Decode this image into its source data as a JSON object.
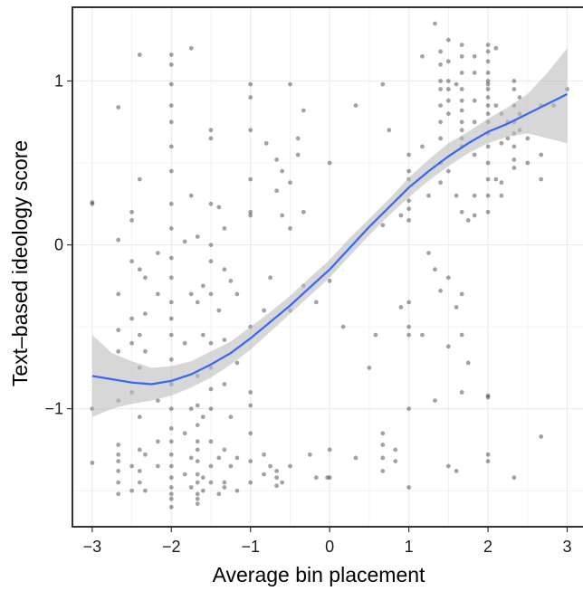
{
  "chart_data": {
    "type": "scatter",
    "title": "",
    "xlabel": "Average bin placement",
    "ylabel": "Text–based ideology score",
    "xlim": [
      -3.25,
      3.2
    ],
    "ylim": [
      -1.72,
      1.45
    ],
    "x_ticks": [
      -3,
      -2,
      -1,
      0,
      1,
      2,
      3
    ],
    "x_tick_labels": [
      "−3",
      "−2",
      "−1",
      "0",
      "1",
      "2",
      "3"
    ],
    "y_ticks": [
      -1,
      0,
      1
    ],
    "y_tick_labels": [
      "−1",
      "0",
      "1"
    ],
    "grid": true,
    "colors": {
      "points": "#333333",
      "smooth_line": "#3366ff",
      "confidence_band": "#bdbdbd",
      "grid": "#ebebeb"
    },
    "points": [
      [
        -3,
        0.26
      ],
      [
        -3,
        0.25
      ],
      [
        -3,
        -1.33
      ],
      [
        -3,
        -1.0
      ],
      [
        -2.67,
        0.84
      ],
      [
        -2.67,
        0.03
      ],
      [
        -2.67,
        -0.3
      ],
      [
        -2.67,
        -0.52
      ],
      [
        -2.67,
        -0.95
      ],
      [
        -2.67,
        -1.22
      ],
      [
        -2.67,
        -1.28
      ],
      [
        -2.67,
        -1.32
      ],
      [
        -2.67,
        -1.38
      ],
      [
        -2.67,
        -1.45
      ],
      [
        -2.67,
        -1.52
      ],
      [
        -2.67,
        -0.65
      ],
      [
        -2.5,
        0.2
      ],
      [
        -2.5,
        0.15
      ],
      [
        -2.5,
        -0.1
      ],
      [
        -2.5,
        -0.45
      ],
      [
        -2.5,
        -0.6
      ],
      [
        -2.5,
        -0.9
      ],
      [
        -2.5,
        -1.35
      ],
      [
        -2.5,
        -1.5
      ],
      [
        -2.4,
        1.16
      ],
      [
        -2.4,
        0.4
      ],
      [
        -2.4,
        -0.15
      ],
      [
        -2.4,
        -0.55
      ],
      [
        -2.4,
        -0.75
      ],
      [
        -2.4,
        -1.05
      ],
      [
        -2.4,
        -1.25
      ],
      [
        -2.4,
        -1.38
      ],
      [
        -2.4,
        -1.45
      ],
      [
        -2.33,
        -0.2
      ],
      [
        -2.33,
        -0.42
      ],
      [
        -2.33,
        -0.65
      ],
      [
        -2.33,
        -1.28
      ],
      [
        -2.33,
        -1.5
      ],
      [
        -2.17,
        -0.05
      ],
      [
        -2.17,
        -0.3
      ],
      [
        -2.17,
        -0.95
      ],
      [
        -2.17,
        -1.2
      ],
      [
        -2.17,
        -1.35
      ],
      [
        -2,
        1.16
      ],
      [
        -2,
        1.1
      ],
      [
        -2,
        0.98
      ],
      [
        -2,
        0.85
      ],
      [
        -2,
        0.75
      ],
      [
        -2,
        0.6
      ],
      [
        -2,
        0.45
      ],
      [
        -2,
        0.25
      ],
      [
        -2,
        0.1
      ],
      [
        -2,
        -0.08
      ],
      [
        -2,
        -0.2
      ],
      [
        -2,
        -0.35
      ],
      [
        -2,
        -0.45
      ],
      [
        -2,
        -0.55
      ],
      [
        -2,
        -0.7
      ],
      [
        -2,
        -0.85
      ],
      [
        -2,
        -1.0
      ],
      [
        -2,
        -1.12
      ],
      [
        -2,
        -1.2
      ],
      [
        -2,
        -1.28
      ],
      [
        -2,
        -1.35
      ],
      [
        -2,
        -1.42
      ],
      [
        -2,
        -1.48
      ],
      [
        -2,
        -1.52
      ],
      [
        -2,
        -1.55
      ],
      [
        -2,
        -1.6
      ],
      [
        -1.83,
        0.02
      ],
      [
        -1.83,
        -0.6
      ],
      [
        -1.83,
        -1.15
      ],
      [
        -1.83,
        -1.4
      ],
      [
        -1.75,
        1.2
      ],
      [
        -1.75,
        0.3
      ],
      [
        -1.75,
        -0.3
      ],
      [
        -1.75,
        -1.0
      ],
      [
        -1.75,
        -1.3
      ],
      [
        -1.75,
        -1.48
      ],
      [
        -1.67,
        0.05
      ],
      [
        -1.67,
        -0.35
      ],
      [
        -1.67,
        -0.8
      ],
      [
        -1.67,
        -0.98
      ],
      [
        -1.67,
        -1.1
      ],
      [
        -1.67,
        -1.2
      ],
      [
        -1.67,
        -1.25
      ],
      [
        -1.67,
        -1.32
      ],
      [
        -1.67,
        -1.4
      ],
      [
        -1.67,
        -1.45
      ],
      [
        -1.67,
        -1.52
      ],
      [
        -1.67,
        -1.55
      ],
      [
        -1.67,
        -1.58
      ],
      [
        -1.6,
        -0.25
      ],
      [
        -1.6,
        -0.55
      ],
      [
        -1.6,
        -1.05
      ],
      [
        -1.6,
        -1.42
      ],
      [
        -1.6,
        -1.5
      ],
      [
        -1.5,
        0.7
      ],
      [
        -1.5,
        0.65
      ],
      [
        -1.5,
        0.25
      ],
      [
        -1.5,
        0.0
      ],
      [
        -1.5,
        -0.1
      ],
      [
        -1.5,
        -0.3
      ],
      [
        -1.5,
        -0.6
      ],
      [
        -1.5,
        -0.75
      ],
      [
        -1.5,
        -0.88
      ],
      [
        -1.5,
        -1.0
      ],
      [
        -1.5,
        -1.2
      ],
      [
        -1.5,
        -1.35
      ],
      [
        -1.5,
        -1.45
      ],
      [
        -1.4,
        0.23
      ],
      [
        -1.4,
        -0.4
      ],
      [
        -1.4,
        -1.3
      ],
      [
        -1.4,
        -1.52
      ],
      [
        -1.33,
        0.1
      ],
      [
        -1.33,
        -0.15
      ],
      [
        -1.33,
        -0.58
      ],
      [
        -1.33,
        -0.85
      ],
      [
        -1.33,
        -1.25
      ],
      [
        -1.33,
        -1.45
      ],
      [
        -1.33,
        -1.48
      ],
      [
        -1.25,
        -0.22
      ],
      [
        -1.25,
        -1.05
      ],
      [
        -1.25,
        -1.35
      ],
      [
        -1.17,
        -0.3
      ],
      [
        -1.17,
        -0.72
      ],
      [
        -1.17,
        -1.3
      ],
      [
        -1.17,
        -1.5
      ],
      [
        -1,
        0.98
      ],
      [
        -1,
        0.9
      ],
      [
        -1,
        0.7
      ],
      [
        -1,
        0.4
      ],
      [
        -1,
        0.2
      ],
      [
        -1,
        0.18
      ],
      [
        -1,
        -0.5
      ],
      [
        -1,
        -0.9
      ],
      [
        -1,
        -0.98
      ],
      [
        -1,
        -1.15
      ],
      [
        -1,
        -1.32
      ],
      [
        -1,
        -1.45
      ],
      [
        -0.83,
        -0.4
      ],
      [
        -0.83,
        -1.28
      ],
      [
        -0.83,
        -1.4
      ],
      [
        -0.8,
        0.62
      ],
      [
        -0.75,
        -0.2
      ],
      [
        -0.75,
        -1.35
      ],
      [
        -0.67,
        0.52
      ],
      [
        -0.67,
        0.33
      ],
      [
        -0.67,
        -1.38
      ],
      [
        -0.67,
        -1.42
      ],
      [
        -0.67,
        -1.47
      ],
      [
        -0.6,
        0.45
      ],
      [
        -0.6,
        0.18
      ],
      [
        -0.6,
        -1.45
      ],
      [
        -0.5,
        0.98
      ],
      [
        -0.5,
        0.38
      ],
      [
        -0.5,
        0.1
      ],
      [
        -0.5,
        -0.4
      ],
      [
        -0.5,
        -1.35
      ],
      [
        -0.4,
        0.65
      ],
      [
        -0.4,
        0.55
      ],
      [
        -0.33,
        0.82
      ],
      [
        -0.33,
        0.2
      ],
      [
        -0.33,
        -0.25
      ],
      [
        -0.25,
        -1.28
      ],
      [
        -0.17,
        -0.35
      ],
      [
        -0.17,
        -1.42
      ],
      [
        0,
        0.5
      ],
      [
        0,
        -0.22
      ],
      [
        -0.03,
        -1.42
      ],
      [
        0,
        -1.42
      ],
      [
        0,
        -1.25
      ],
      [
        0.17,
        -0.5
      ],
      [
        0.33,
        0.85
      ],
      [
        0.33,
        -1.3
      ],
      [
        0.5,
        -0.75
      ],
      [
        0.58,
        -0.55
      ],
      [
        0.67,
        0.98
      ],
      [
        0.67,
        0.12
      ],
      [
        0.67,
        -1.15
      ],
      [
        0.67,
        -1.22
      ],
      [
        0.67,
        -1.3
      ],
      [
        0.67,
        -1.38
      ],
      [
        0.75,
        0.7
      ],
      [
        0.83,
        -1.25
      ],
      [
        0.83,
        -1.32
      ],
      [
        0.9,
        0.18
      ],
      [
        0.9,
        -0.38
      ],
      [
        1,
        0.55
      ],
      [
        1,
        0.45
      ],
      [
        1,
        0.4
      ],
      [
        1,
        0.27
      ],
      [
        1,
        0.22
      ],
      [
        1,
        0.15
      ],
      [
        1,
        -0.35
      ],
      [
        1,
        -0.5
      ],
      [
        1,
        -0.55
      ],
      [
        1,
        -1.0
      ],
      [
        1,
        -1.48
      ],
      [
        1.17,
        1.15
      ],
      [
        1.17,
        0.6
      ],
      [
        1.17,
        -0.55
      ],
      [
        1.25,
        0.3
      ],
      [
        1.25,
        -0.05
      ],
      [
        1.33,
        1.35
      ],
      [
        1.33,
        -0.15
      ],
      [
        1.33,
        -0.95
      ],
      [
        1.4,
        1.18
      ],
      [
        1.4,
        1.1
      ],
      [
        1.4,
        1.0
      ],
      [
        1.4,
        0.95
      ],
      [
        1.4,
        0.85
      ],
      [
        1.4,
        0.75
      ],
      [
        1.4,
        0.65
      ],
      [
        1.4,
        0.5
      ],
      [
        1.4,
        0.38
      ],
      [
        1.4,
        -0.28
      ],
      [
        1.5,
        1.25
      ],
      [
        1.5,
        1.12
      ],
      [
        1.5,
        1.0
      ],
      [
        1.5,
        0.95
      ],
      [
        1.5,
        0.88
      ],
      [
        1.5,
        0.8
      ],
      [
        1.5,
        0.45
      ],
      [
        1.5,
        -0.2
      ],
      [
        1.5,
        -0.62
      ],
      [
        1.5,
        -1.35
      ],
      [
        1.6,
        0.98
      ],
      [
        1.6,
        0.3
      ],
      [
        1.6,
        -0.38
      ],
      [
        1.6,
        -1.38
      ],
      [
        1.67,
        1.22
      ],
      [
        1.67,
        1.15
      ],
      [
        1.67,
        1.05
      ],
      [
        1.67,
        0.95
      ],
      [
        1.67,
        0.88
      ],
      [
        1.67,
        0.82
      ],
      [
        1.67,
        0.75
      ],
      [
        1.67,
        0.7
      ],
      [
        1.67,
        0.65
      ],
      [
        1.67,
        0.6
      ],
      [
        1.67,
        0.2
      ],
      [
        1.67,
        -0.3
      ],
      [
        1.67,
        -0.55
      ],
      [
        1.67,
        -0.9
      ],
      [
        1.75,
        0.15
      ],
      [
        1.75,
        -0.72
      ],
      [
        1.83,
        1.15
      ],
      [
        1.83,
        1.05
      ],
      [
        1.83,
        0.88
      ],
      [
        1.83,
        0.75
      ],
      [
        1.83,
        0.55
      ],
      [
        1.83,
        0.3
      ],
      [
        1.83,
        0.18
      ],
      [
        2,
        1.22
      ],
      [
        2,
        1.18
      ],
      [
        2,
        1.12
      ],
      [
        2,
        1.05
      ],
      [
        2,
        1.0
      ],
      [
        2,
        0.98
      ],
      [
        2,
        0.95
      ],
      [
        2,
        0.9
      ],
      [
        2,
        0.85
      ],
      [
        2,
        0.8
      ],
      [
        2,
        0.75
      ],
      [
        2,
        0.68
      ],
      [
        2,
        0.6
      ],
      [
        2,
        0.5
      ],
      [
        2,
        0.4
      ],
      [
        2,
        0.3
      ],
      [
        2,
        0.2
      ],
      [
        2,
        -0.92
      ],
      [
        2,
        -0.93
      ],
      [
        2,
        -1.28
      ],
      [
        2,
        -1.32
      ],
      [
        2.1,
        1.2
      ],
      [
        2.1,
        0.85
      ],
      [
        2.1,
        0.4
      ],
      [
        2.17,
        0.8
      ],
      [
        2.17,
        0.62
      ],
      [
        2.17,
        0.38
      ],
      [
        2.17,
        0.3
      ],
      [
        2.25,
        0.75
      ],
      [
        2.25,
        0.65
      ],
      [
        2.33,
        1.0
      ],
      [
        2.33,
        0.95
      ],
      [
        2.33,
        0.85
      ],
      [
        2.33,
        0.75
      ],
      [
        2.33,
        0.68
      ],
      [
        2.33,
        0.6
      ],
      [
        2.33,
        0.52
      ],
      [
        2.33,
        0.47
      ],
      [
        2.33,
        -1.42
      ],
      [
        2.4,
        0.9
      ],
      [
        2.4,
        0.8
      ],
      [
        2.4,
        0.7
      ],
      [
        2.5,
        0.65
      ],
      [
        2.5,
        0.5
      ],
      [
        2.67,
        0.85
      ],
      [
        2.67,
        0.55
      ],
      [
        2.67,
        0.4
      ],
      [
        2.67,
        -1.17
      ],
      [
        2.83,
        0.85
      ],
      [
        3,
        0.95
      ]
    ],
    "smooth_curve": {
      "x": [
        -3,
        -2.75,
        -2.5,
        -2.25,
        -2,
        -1.75,
        -1.5,
        -1.25,
        -1,
        -0.75,
        -0.5,
        -0.25,
        0,
        0.25,
        0.5,
        0.75,
        1,
        1.25,
        1.5,
        1.75,
        2,
        2.25,
        2.5,
        2.75,
        3
      ],
      "y": [
        -0.8,
        -0.82,
        -0.84,
        -0.85,
        -0.83,
        -0.79,
        -0.73,
        -0.66,
        -0.57,
        -0.47,
        -0.37,
        -0.26,
        -0.15,
        -0.02,
        0.11,
        0.23,
        0.35,
        0.45,
        0.54,
        0.62,
        0.69,
        0.74,
        0.8,
        0.86,
        0.92
      ],
      "lower": [
        -1.05,
        -1.0,
        -0.97,
        -0.95,
        -0.92,
        -0.87,
        -0.81,
        -0.73,
        -0.64,
        -0.53,
        -0.42,
        -0.31,
        -0.2,
        -0.07,
        0.06,
        0.18,
        0.29,
        0.39,
        0.48,
        0.56,
        0.62,
        0.66,
        0.68,
        0.65,
        0.62
      ],
      "upper": [
        -0.55,
        -0.66,
        -0.71,
        -0.75,
        -0.74,
        -0.71,
        -0.65,
        -0.59,
        -0.5,
        -0.41,
        -0.31,
        -0.2,
        -0.09,
        0.04,
        0.16,
        0.28,
        0.41,
        0.52,
        0.62,
        0.69,
        0.77,
        0.84,
        0.92,
        1.05,
        1.2
      ]
    }
  }
}
